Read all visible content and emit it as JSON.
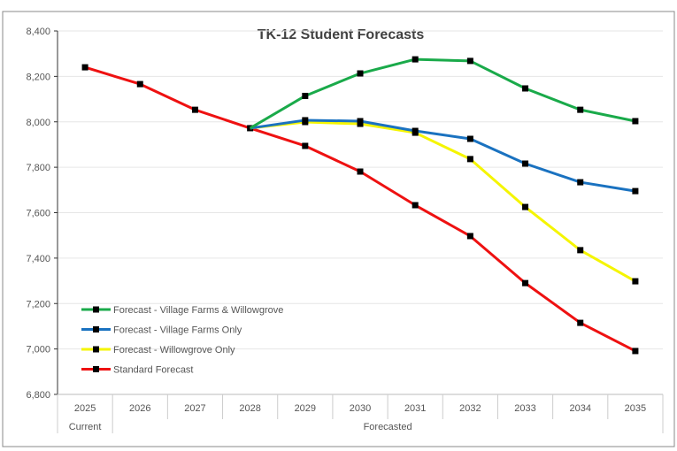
{
  "chart_data": {
    "type": "line",
    "title": "TK-12 Student Forecasts",
    "categories": [
      "2025",
      "2026",
      "2027",
      "2028",
      "2029",
      "2030",
      "2031",
      "2032",
      "2033",
      "2034",
      "2035"
    ],
    "category_groups": [
      {
        "label": "Current",
        "span": 1
      },
      {
        "label": "Forecasted",
        "span": 10
      }
    ],
    "ylim": [
      6800,
      8400
    ],
    "yticks": [
      6800,
      7000,
      7200,
      7400,
      7600,
      7800,
      8000,
      8200,
      8400
    ],
    "ytick_labels": [
      "6,800",
      "7,000",
      "7,200",
      "7,400",
      "7,600",
      "7,800",
      "8,000",
      "8,200",
      "8,400"
    ],
    "grid": true,
    "legend_position": "bottom-left",
    "series": [
      {
        "name": "Forecast - Village Farms & Willowgrove",
        "color": "#1aaa4a",
        "values": [
          null,
          null,
          null,
          7972,
          8114,
          8213,
          8275,
          8268,
          8147,
          8053,
          8003
        ]
      },
      {
        "name": "Forecast - Village Farms Only",
        "color": "#1a72c0",
        "values": [
          null,
          null,
          null,
          7972,
          8007,
          8003,
          7960,
          7925,
          7816,
          7734,
          7695
        ]
      },
      {
        "name": "Forecast - Willowgrove Only",
        "color": "#f5f500",
        "values": [
          null,
          null,
          null,
          7972,
          7999,
          7991,
          7952,
          7836,
          7625,
          7435,
          7298
        ]
      },
      {
        "name": "Standard Forecast",
        "color": "#ee1111",
        "values": [
          8240,
          8166,
          8053,
          7972,
          7894,
          7781,
          7633,
          7497,
          7290,
          7115,
          6991
        ]
      }
    ]
  }
}
